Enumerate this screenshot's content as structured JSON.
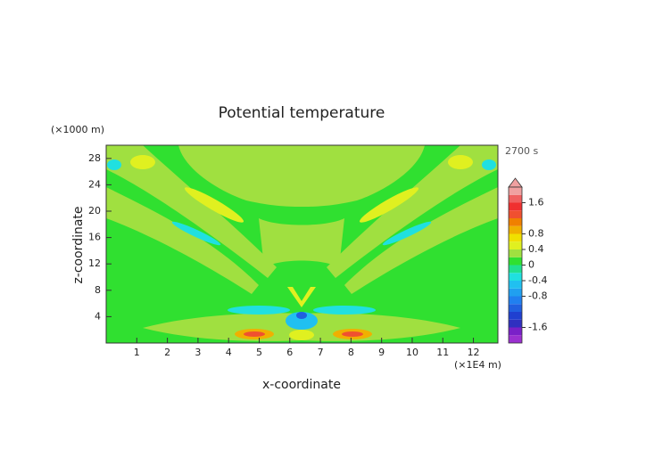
{
  "chart_data": {
    "type": "contourf",
    "title": "Potential temperature",
    "xlabel": "x-coordinate",
    "ylabel": "z-coordinate",
    "x_unit": "(×1E4 m)",
    "y_unit": "(×1000 m)",
    "time_label": "2700 s",
    "xlim": [
      0,
      12.8
    ],
    "ylim": [
      0,
      30
    ],
    "xticks": [
      1,
      2,
      3,
      4,
      5,
      6,
      7,
      8,
      9,
      10,
      11,
      12
    ],
    "yticks": [
      4,
      8,
      12,
      16,
      20,
      24,
      28
    ],
    "colorbar": {
      "lim": [
        -2,
        2
      ],
      "ticks": [
        -1.6,
        -0.8,
        -0.4,
        0,
        0.4,
        0.8,
        1.6
      ],
      "levels": [
        -2,
        -1.8,
        -1.6,
        -1.4,
        -1.2,
        -1,
        -0.8,
        -0.6,
        -0.4,
        -0.2,
        0,
        0.2,
        0.4,
        0.6,
        0.8,
        1,
        1.2,
        1.4,
        1.6,
        1.8,
        2
      ],
      "colors": [
        "#9b30d0",
        "#7a20c8",
        "#3030c0",
        "#2040d0",
        "#2060e0",
        "#2080f0",
        "#20a0f0",
        "#20c0f0",
        "#20e0e0",
        "#20e090",
        "#30e030",
        "#a0e040",
        "#e0f020",
        "#f0e000",
        "#f0b000",
        "#f08000",
        "#f05030",
        "#f03030",
        "#f06060",
        "#f0a0a0"
      ]
    }
  }
}
